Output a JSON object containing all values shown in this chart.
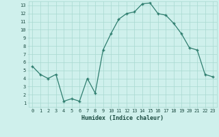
{
  "x": [
    0,
    1,
    2,
    3,
    4,
    5,
    6,
    7,
    8,
    9,
    10,
    11,
    12,
    13,
    14,
    15,
    16,
    17,
    18,
    19,
    20,
    21,
    22,
    23
  ],
  "y": [
    5.5,
    4.5,
    4.0,
    4.5,
    1.2,
    1.5,
    1.2,
    4.0,
    2.2,
    7.5,
    9.5,
    11.3,
    12.0,
    12.2,
    13.2,
    13.3,
    12.0,
    11.8,
    10.8,
    9.5,
    7.8,
    7.5,
    4.5,
    4.2
  ],
  "line_color": "#2e7d6e",
  "marker": "+",
  "marker_size": 3,
  "bg_color": "#cff0ec",
  "grid_color": "#a8d8d0",
  "xlabel": "Humidex (Indice chaleur)",
  "xlabel_color": "#1a4a40",
  "tick_color": "#1a4a40",
  "xlim": [
    -0.5,
    23.5
  ],
  "ylim": [
    0.5,
    13.5
  ],
  "yticks": [
    1,
    2,
    3,
    4,
    5,
    6,
    7,
    8,
    9,
    10,
    11,
    12,
    13
  ],
  "xticks": [
    0,
    1,
    2,
    3,
    4,
    5,
    6,
    7,
    8,
    9,
    10,
    11,
    12,
    13,
    14,
    15,
    16,
    17,
    18,
    19,
    20,
    21,
    22,
    23
  ]
}
